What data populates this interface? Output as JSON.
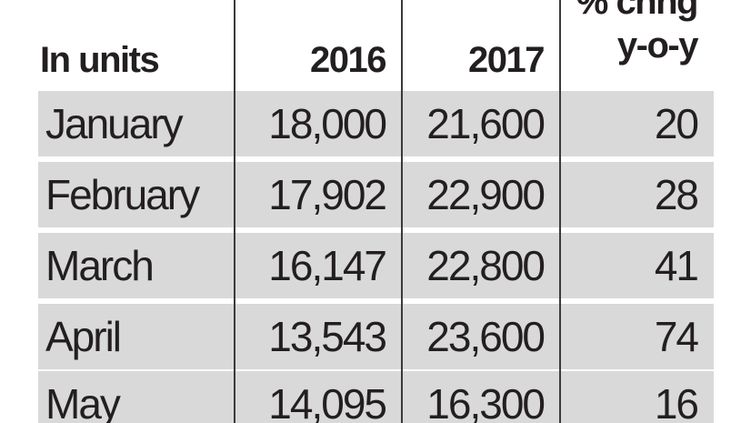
{
  "table": {
    "header": [
      "In units",
      "2016",
      "2017",
      [
        "% chng",
        "y-o-y"
      ]
    ],
    "rows": [
      [
        "January",
        "18,000",
        "21,600",
        "20"
      ],
      [
        "February",
        "17,902",
        "22,900",
        "28"
      ],
      [
        "March",
        "16,147",
        "22,800",
        "41"
      ],
      [
        "April",
        "13,543",
        "23,600",
        "74"
      ],
      [
        "May",
        "14,095",
        "16,300",
        "16"
      ]
    ]
  }
}
